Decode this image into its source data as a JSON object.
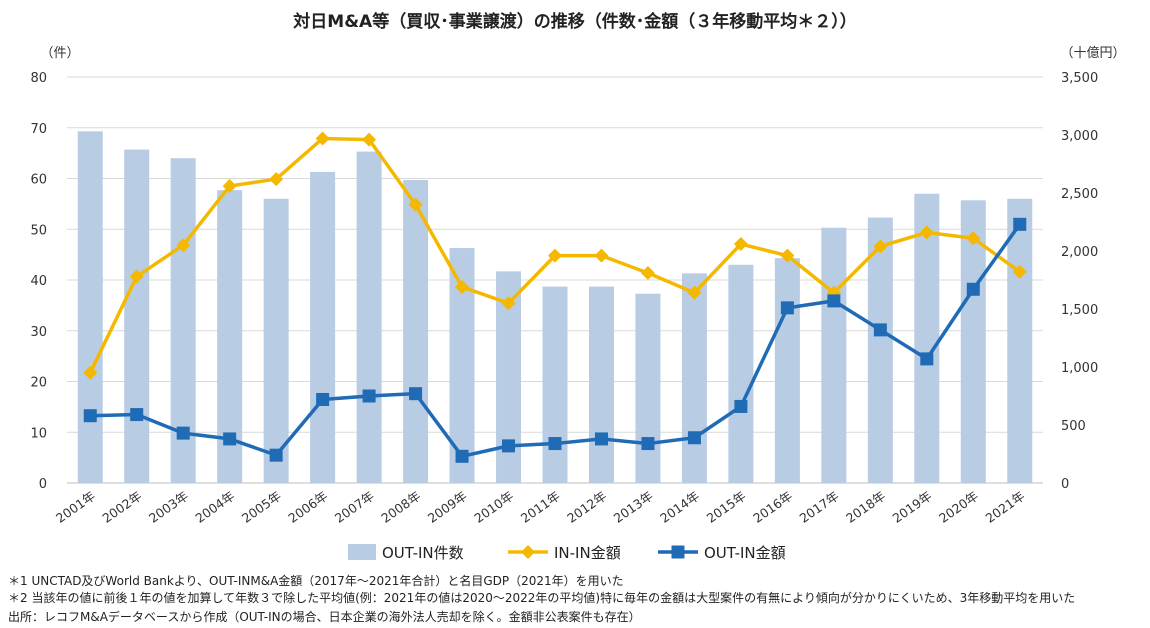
{
  "chart_data": {
    "type": "bar+line (dual axis)",
    "title": "対日M&A等（買収･事業譲渡）の推移（件数･金額（３年移動平均＊２））",
    "y_left_unit": "（件）",
    "y_right_unit": "（十億円）",
    "y_left_range": [
      0,
      80
    ],
    "y_left_ticks": [
      "0",
      "10",
      "20",
      "30",
      "40",
      "50",
      "60",
      "70",
      "80"
    ],
    "y_right_range": [
      0,
      3500
    ],
    "y_right_ticks": [
      "0",
      "500",
      "1,000",
      "1,500",
      "2,000",
      "2,500",
      "3,000",
      "3,500"
    ],
    "categories": [
      "2001年",
      "2002年",
      "2003年",
      "2004年",
      "2005年",
      "2006年",
      "2007年",
      "2008年",
      "2009年",
      "2010年",
      "2011年",
      "2012年",
      "2013年",
      "2014年",
      "2015年",
      "2016年",
      "2017年",
      "2018年",
      "2019年",
      "2020年",
      "2021年"
    ],
    "series": [
      {
        "name": "OUT-IN件数",
        "type": "bar",
        "axis": "left",
        "color": "#b8cce4",
        "values": [
          69.3,
          65.7,
          64.0,
          57.7,
          56.0,
          61.3,
          65.3,
          59.7,
          46.3,
          41.7,
          38.7,
          38.7,
          37.3,
          41.3,
          43.0,
          44.3,
          50.3,
          52.3,
          57.0,
          55.7,
          56.0
        ]
      },
      {
        "name": "IN-IN金額",
        "type": "line",
        "axis": "right",
        "color": "#f5b800",
        "marker": "diamond",
        "values": [
          950,
          1780,
          2050,
          2560,
          2620,
          2970,
          2960,
          2400,
          1690,
          1550,
          1960,
          1960,
          1810,
          1640,
          2060,
          1960,
          1640,
          2040,
          2160,
          2110,
          1820
        ]
      },
      {
        "name": "OUT-IN金額",
        "type": "line",
        "axis": "right",
        "color": "#1f6bb5",
        "marker": "square",
        "values": [
          580,
          590,
          430,
          380,
          240,
          720,
          750,
          770,
          230,
          320,
          340,
          380,
          340,
          390,
          660,
          1510,
          1570,
          1320,
          1070,
          1670,
          2230
        ]
      }
    ],
    "legend": {
      "position": "bottom"
    }
  },
  "footnotes": [
    "＊1 UNCTAD及びWorld Bankより、OUT-INM&A金額（2017年～2021年合計）と名目GDP（2021年）を用いた",
    "＊2 当該年の値に前後１年の値を加算して年数３で除した平均値(例：2021年の値は2020～2022年の平均値)特に毎年の金額は大型案件の有無により傾向が分かりにくいため、3年移動平均を用いた",
    "出所：レコフM&Aデータベースから作成（OUT-INの場合、日本企業の海外法人売却を除く。金額非公表案件も存在）"
  ]
}
